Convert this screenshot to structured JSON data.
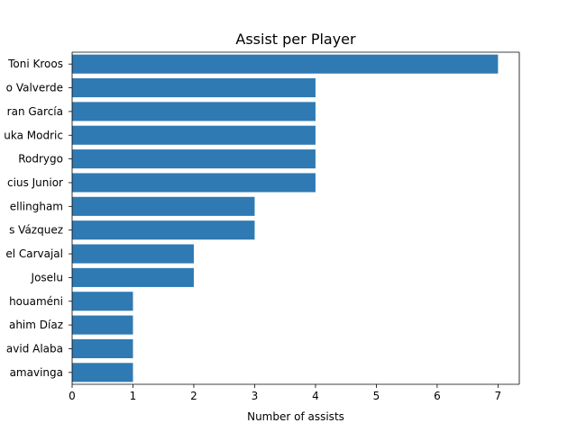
{
  "chart_data": {
    "type": "bar",
    "orientation": "horizontal",
    "title": "Assist per Player",
    "xlabel": "Number of assists",
    "ylabel": "",
    "xlim": [
      0,
      7.35
    ],
    "xticks": [
      "0",
      "1",
      "2",
      "3",
      "4",
      "5",
      "6",
      "7"
    ],
    "grid": false,
    "bar_color": "#2f7ab3",
    "categories": [
      "Toni Kroos",
      "o Valverde",
      "ran García",
      "uka Modric",
      "Rodrygo",
      "cius Junior",
      "ellingham",
      "s Vázquez",
      "el Carvajal",
      "Joselu",
      "houaméni",
      "ahim Díaz",
      "avid Alaba",
      "amavinga"
    ],
    "values": [
      7,
      4,
      4,
      4,
      4,
      4,
      3,
      3,
      2,
      2,
      1,
      1,
      1,
      1
    ]
  }
}
